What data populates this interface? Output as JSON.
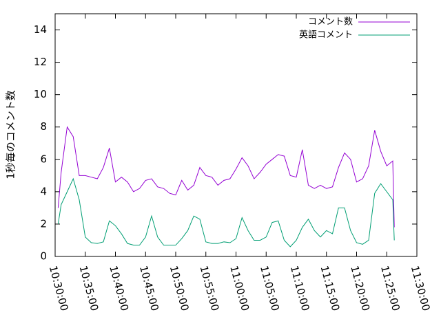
{
  "chart_data": {
    "type": "line",
    "y_label": "1秒毎のコメント数",
    "x": [
      "10:30:30",
      "10:31:00",
      "10:32:00",
      "10:33:00",
      "10:34:00",
      "10:35:00",
      "10:36:00",
      "10:37:00",
      "10:38:00",
      "10:39:00",
      "10:40:00",
      "10:41:00",
      "10:42:00",
      "10:43:00",
      "10:44:00",
      "10:45:00",
      "10:46:00",
      "10:47:00",
      "10:48:00",
      "10:49:00",
      "10:50:00",
      "10:51:00",
      "10:52:00",
      "10:53:00",
      "10:54:00",
      "10:55:00",
      "10:56:00",
      "10:57:00",
      "10:58:00",
      "10:59:00",
      "11:00:00",
      "11:01:00",
      "11:02:00",
      "11:03:00",
      "11:04:00",
      "11:05:00",
      "11:06:00",
      "11:07:00",
      "11:08:00",
      "11:09:00",
      "11:10:00",
      "11:11:00",
      "11:12:00",
      "11:13:00",
      "11:14:00",
      "11:15:00",
      "11:16:00",
      "11:17:00",
      "11:18:00",
      "11:19:00",
      "11:20:00",
      "11:21:00",
      "11:22:00",
      "11:23:00",
      "11:24:00",
      "11:25:00",
      "11:26:00",
      "11:26:15"
    ],
    "series": [
      {
        "name": "コメント数",
        "color": "#9400d3",
        "values": [
          3.0,
          5.2,
          8.0,
          7.4,
          5.0,
          5.0,
          4.9,
          4.8,
          5.5,
          6.7,
          4.6,
          4.9,
          4.6,
          4.0,
          4.2,
          4.7,
          4.8,
          4.3,
          4.2,
          3.9,
          3.8,
          4.7,
          4.1,
          4.4,
          5.5,
          5.0,
          4.9,
          4.4,
          4.7,
          4.8,
          5.4,
          6.1,
          5.6,
          4.8,
          5.2,
          5.7,
          6.0,
          6.3,
          6.2,
          5.0,
          4.9,
          6.6,
          4.4,
          4.2,
          4.4,
          4.2,
          4.3,
          5.5,
          6.4,
          6.0,
          4.6,
          4.8,
          5.6,
          7.8,
          6.5,
          5.6,
          5.9,
          1.8
        ]
      },
      {
        "name": "英語コメント",
        "color": "#009e73",
        "values": [
          2.0,
          3.2,
          4.0,
          4.8,
          3.5,
          1.2,
          0.85,
          0.8,
          0.9,
          2.2,
          1.9,
          1.4,
          0.8,
          0.7,
          0.7,
          1.2,
          2.5,
          1.2,
          0.7,
          0.7,
          0.7,
          1.1,
          1.6,
          2.5,
          2.3,
          0.9,
          0.8,
          0.8,
          0.9,
          0.85,
          1.1,
          2.4,
          1.6,
          1.0,
          1.0,
          1.2,
          2.1,
          2.2,
          1.0,
          0.6,
          1.0,
          1.8,
          2.3,
          1.6,
          1.2,
          1.6,
          1.4,
          3.0,
          3.0,
          1.6,
          0.85,
          0.75,
          1.0,
          3.9,
          4.5,
          4.0,
          3.5,
          1.0
        ]
      }
    ],
    "xlim": [
      "10:30:00",
      "11:30:00"
    ],
    "xticks": [
      "10:30:00",
      "10:35:00",
      "10:40:00",
      "10:45:00",
      "10:50:00",
      "10:55:00",
      "11:00:00",
      "11:05:00",
      "11:10:00",
      "11:15:00",
      "11:20:00",
      "11:25:00",
      "11:30:00"
    ],
    "ylim": [
      0,
      15
    ],
    "yticks": [
      0,
      2,
      4,
      6,
      8,
      10,
      12,
      14
    ],
    "legend": "top-right"
  }
}
